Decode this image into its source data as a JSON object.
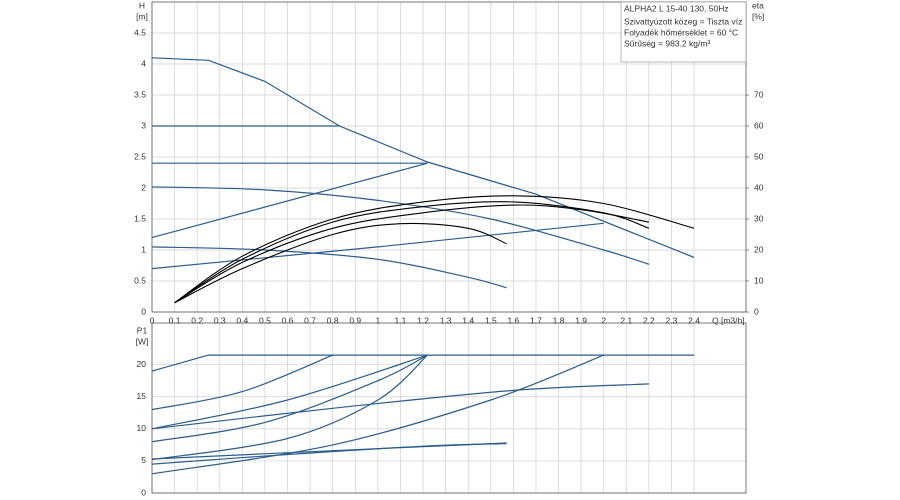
{
  "chart_data": [
    {
      "type": "line",
      "ylabel": "H",
      "yunit": "[m]",
      "y2label": "eta",
      "y2unit": "[%]",
      "xlabel": "Q [m3/h]",
      "info": [
        "ALPHA2 L 15-40 130, 50Hz",
        "Szivattyúzott közeg = Tiszta víz",
        "Folyadék hőmérséklet = 60 °C",
        "Sűrűség = 983.2 kg/m³"
      ],
      "xlim": [
        0,
        2.63
      ],
      "xticks": [
        0,
        0.1,
        0.2,
        0.3,
        0.4,
        0.5,
        0.6,
        0.7,
        0.8,
        0.9,
        1,
        1.1,
        1.2,
        1.3,
        1.4,
        1.5,
        1.6,
        1.7,
        1.8,
        1.9,
        2,
        2.1,
        2.2,
        2.3,
        2.4
      ],
      "ylim": [
        0,
        5
      ],
      "yticks": [
        0,
        0.5,
        1,
        1.5,
        2,
        2.5,
        3,
        3.5,
        4,
        4.5
      ],
      "y2lim": [
        0,
        100
      ],
      "y2ticks": [
        0,
        10,
        20,
        30,
        40,
        50,
        60,
        70
      ],
      "grid": true,
      "series": [
        {
          "color": "#2b5c8c",
          "smooth": false,
          "x": [
            0,
            0.25,
            0.5,
            0.83,
            1.22,
            1.7,
            2.4
          ],
          "values": [
            4.1,
            4.06,
            3.72,
            3.0,
            2.42,
            1.9,
            0.88
          ]
        },
        {
          "color": "#2b5c8c",
          "smooth": false,
          "x": [
            0,
            0.83
          ],
          "values": [
            3.0,
            3.0
          ]
        },
        {
          "color": "#2b5c8c",
          "smooth": false,
          "x": [
            0,
            1.22
          ],
          "values": [
            2.4,
            2.4
          ]
        },
        {
          "color": "#2b5c8c",
          "smooth": false,
          "x": [
            0,
            1.22
          ],
          "values": [
            1.2,
            2.4
          ]
        },
        {
          "color": "#2b5c8c",
          "smooth": true,
          "x": [
            0,
            0.5,
            1.0,
            1.5,
            2.0,
            2.2
          ],
          "values": [
            2.02,
            1.97,
            1.8,
            1.5,
            1.0,
            0.77
          ]
        },
        {
          "color": "#2b5c8c",
          "smooth": true,
          "x": [
            0,
            0.5,
            1.0,
            1.4,
            1.57
          ],
          "values": [
            1.05,
            1.0,
            0.85,
            0.56,
            0.39
          ]
        },
        {
          "color": "#2b5c8c",
          "smooth": false,
          "x": [
            0,
            1.0,
            2.0
          ],
          "values": [
            0.7,
            1.05,
            1.43
          ]
        },
        {
          "color": "#000000",
          "smooth": true,
          "axis": "y2",
          "x": [
            0.1,
            0.4,
            0.8,
            1.2,
            1.6,
            2.0,
            2.4
          ],
          "values": [
            3,
            18,
            30,
            35.5,
            37.5,
            35,
            27
          ]
        },
        {
          "color": "#000000",
          "smooth": true,
          "axis": "y2",
          "x": [
            0.1,
            0.4,
            0.8,
            1.2,
            1.6,
            2.0,
            2.2
          ],
          "values": [
            3,
            17,
            29,
            34,
            35.5,
            32,
            27
          ]
        },
        {
          "color": "#000000",
          "smooth": true,
          "axis": "y2",
          "x": [
            0.1,
            0.4,
            0.8,
            1.2,
            1.6,
            1.9,
            2.2
          ],
          "values": [
            3,
            16,
            27,
            32,
            34.5,
            33,
            29
          ]
        },
        {
          "color": "#000000",
          "smooth": true,
          "axis": "y2",
          "x": [
            0.1,
            0.4,
            0.8,
            1.1,
            1.4,
            1.57
          ],
          "values": [
            3,
            14,
            25,
            28.5,
            27,
            22
          ]
        }
      ]
    },
    {
      "type": "line",
      "ylabel": "P1",
      "yunit": "[W]",
      "ylim": [
        0,
        26.5
      ],
      "yticks": [
        0,
        5,
        10,
        15,
        20
      ],
      "grid": true,
      "series": [
        {
          "color": "#2b5c8c",
          "smooth": false,
          "x": [
            0,
            0.25,
            2.4
          ],
          "values": [
            19,
            21.5,
            21.5
          ]
        },
        {
          "color": "#2b5c8c",
          "smooth": true,
          "x": [
            0,
            0.4,
            0.8
          ],
          "values": [
            13,
            15.8,
            21.5
          ]
        },
        {
          "color": "#2b5c8c",
          "smooth": true,
          "x": [
            0,
            0.6,
            1.22
          ],
          "values": [
            10,
            14.5,
            21.5
          ]
        },
        {
          "color": "#2b5c8c",
          "smooth": true,
          "x": [
            0,
            0.5,
            1.0,
            1.22
          ],
          "values": [
            8,
            11,
            17.5,
            21.5
          ]
        },
        {
          "color": "#2b5c8c",
          "smooth": true,
          "x": [
            0,
            0.6,
            1.0,
            1.22
          ],
          "values": [
            5.2,
            8.5,
            14.5,
            21.5
          ]
        },
        {
          "color": "#2b5c8c",
          "smooth": true,
          "x": [
            0,
            0.8,
            1.5,
            2.0
          ],
          "values": [
            3,
            7.5,
            14.5,
            21.5
          ]
        },
        {
          "color": "#2b5c8c",
          "smooth": true,
          "x": [
            0,
            0.8,
            1.6,
            2.2
          ],
          "values": [
            10,
            13.2,
            16,
            17
          ]
        },
        {
          "color": "#2b5c8c",
          "smooth": true,
          "x": [
            0,
            0.8,
            1.57
          ],
          "values": [
            5.3,
            6.6,
            7.8
          ]
        },
        {
          "color": "#2b5c8c",
          "smooth": true,
          "x": [
            0,
            0.6,
            1.2,
            1.57
          ],
          "values": [
            4.5,
            6,
            7.3,
            7.7
          ]
        }
      ]
    }
  ]
}
